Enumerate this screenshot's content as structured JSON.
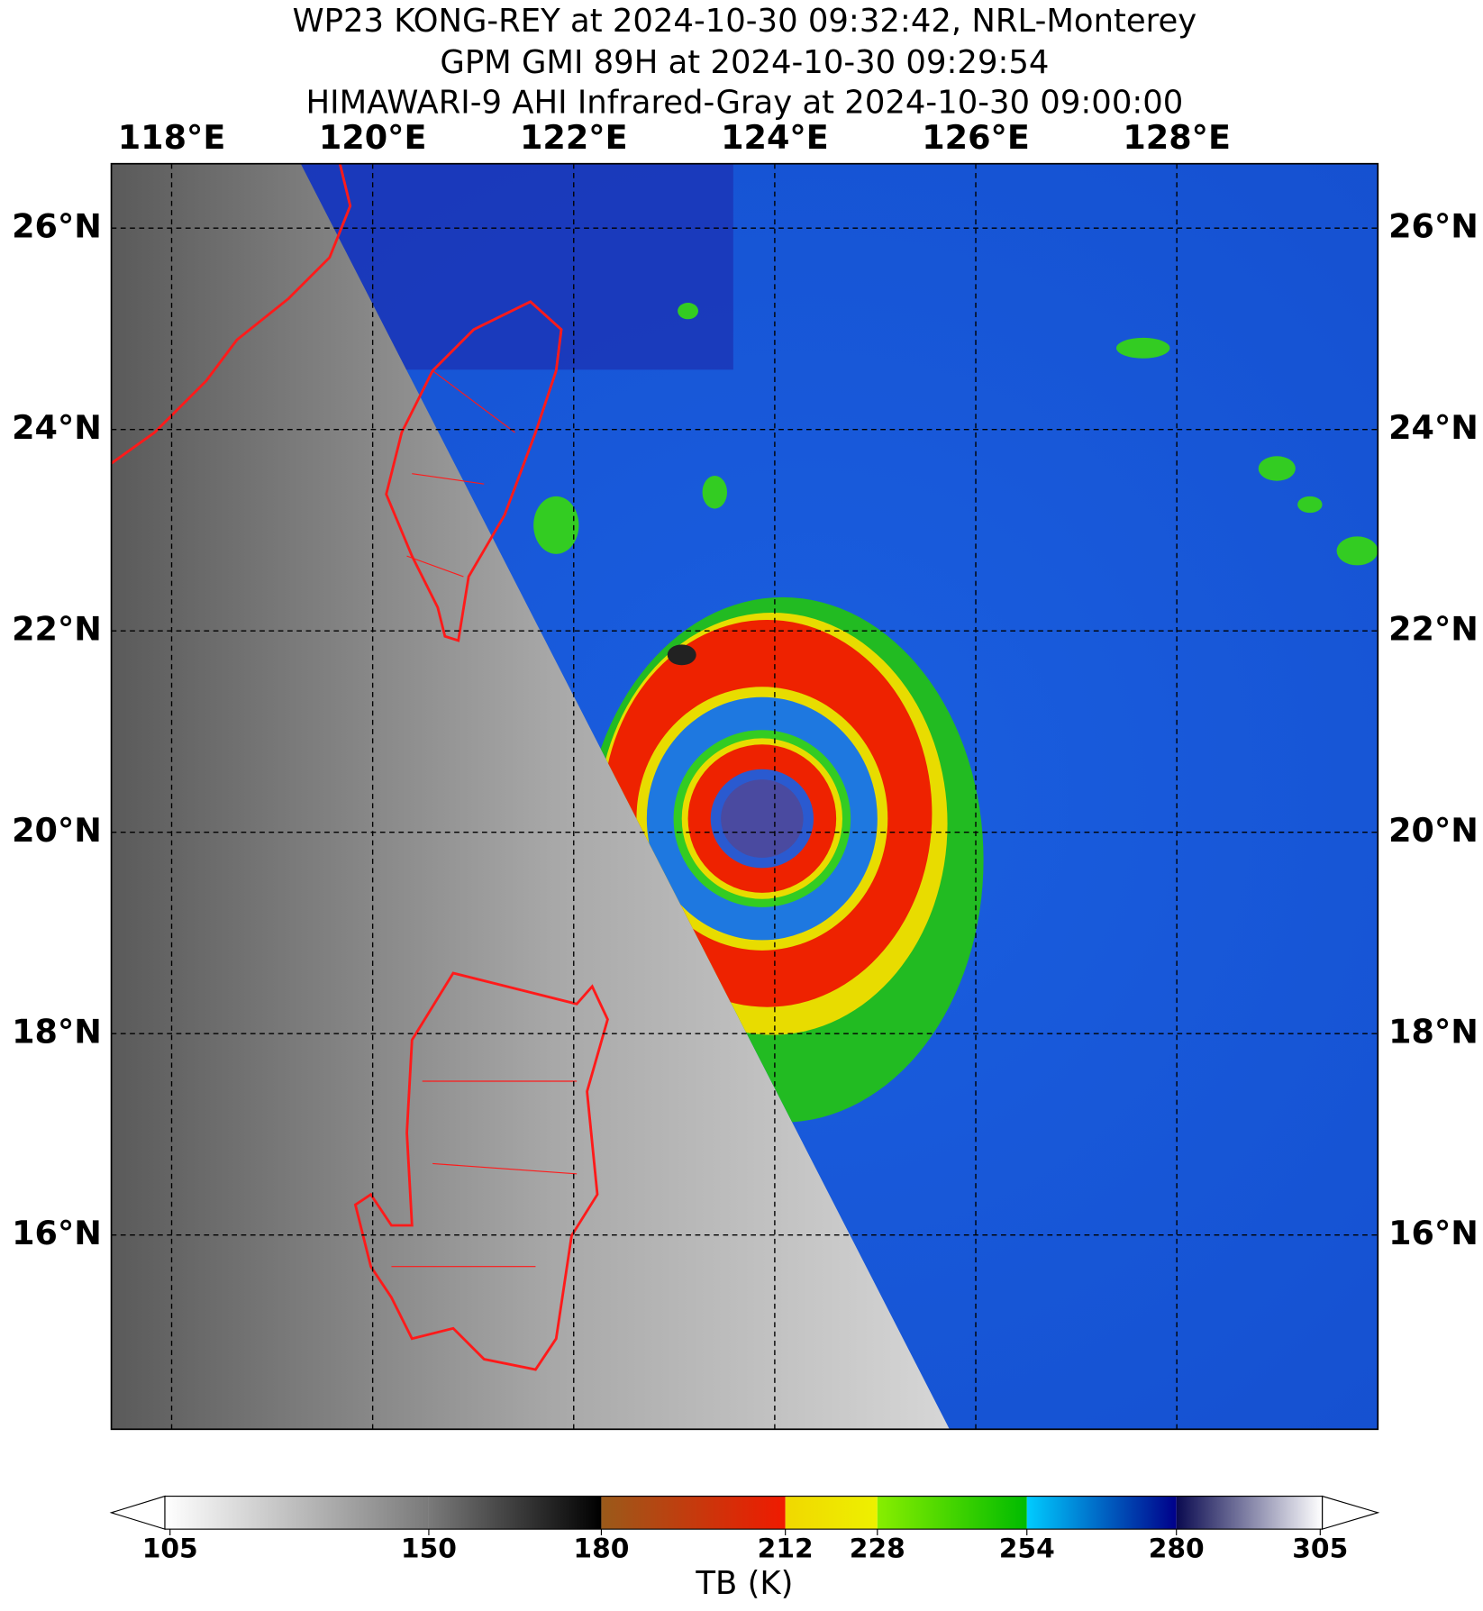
{
  "title_lines": [
    "WP23 KONG-REY at 2024-10-30 09:32:42, NRL-Monterey",
    "GPM GMI 89H at 2024-10-30 09:29:54",
    "HIMAWARI-9 AHI Infrared-Gray at 2024-10-30 09:00:00"
  ],
  "map": {
    "lon_range": [
      117.4,
      130
    ],
    "lat_range": [
      14.07,
      26.64
    ],
    "lon_ticks": [
      {
        "value": 118,
        "label": "118°E"
      },
      {
        "value": 120,
        "label": "120°E"
      },
      {
        "value": 122,
        "label": "122°E"
      },
      {
        "value": 124,
        "label": "124°E"
      },
      {
        "value": 126,
        "label": "126°E"
      },
      {
        "value": 128,
        "label": "128°E"
      }
    ],
    "lat_ticks": [
      {
        "value": 16,
        "label": "16°N"
      },
      {
        "value": 18,
        "label": "18°N"
      },
      {
        "value": 20,
        "label": "20°N"
      },
      {
        "value": 22,
        "label": "22°N"
      },
      {
        "value": 24,
        "label": "24°N"
      },
      {
        "value": 26,
        "label": "26°N"
      }
    ]
  },
  "colorbar": {
    "range": [
      105,
      305
    ],
    "ticks": [
      105,
      150,
      180,
      212,
      228,
      254,
      280,
      305
    ],
    "segment_colors": [
      [
        "#ffffff",
        "#7a7a7a"
      ],
      [
        "#7a7a7a",
        "#000000"
      ],
      [
        "#9a5a1a",
        "#f01a00"
      ],
      [
        "#f0d800",
        "#eef000"
      ],
      [
        "#88ee00",
        "#00bb00"
      ],
      [
        "#00ccff",
        "#00008a"
      ],
      [
        "#0a0a50",
        "#ffffff"
      ]
    ],
    "label": "TB (K)"
  }
}
